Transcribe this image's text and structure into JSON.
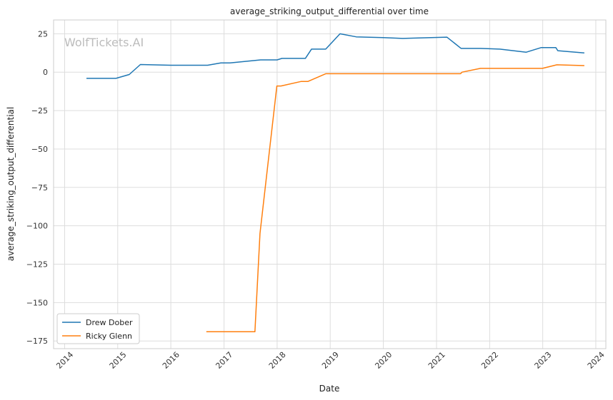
{
  "chart_data": {
    "type": "line",
    "title": "average_striking_output_differential over time",
    "xlabel": "Date",
    "ylabel": "average_striking_output_differential",
    "watermark": "WolfTickets.AI",
    "xlim": [
      "2013-10-17",
      "2024-03-10"
    ],
    "ylim": [
      -180,
      34
    ],
    "x_ticks": [
      "2014-01-01",
      "2015-01-01",
      "2016-01-01",
      "2017-01-01",
      "2018-01-01",
      "2019-01-01",
      "2020-01-01",
      "2021-01-01",
      "2022-01-01",
      "2023-01-01",
      "2024-01-01"
    ],
    "x_tick_labels": [
      "2014",
      "2015",
      "2016",
      "2017",
      "2018",
      "2019",
      "2020",
      "2021",
      "2022",
      "2023",
      "2024"
    ],
    "y_ticks": [
      25,
      0,
      -25,
      -50,
      -75,
      -100,
      -125,
      -150,
      -175
    ],
    "y_tick_labels": [
      "25",
      "0",
      "−25",
      "−50",
      "−75",
      "−100",
      "−125",
      "−150",
      "−175"
    ],
    "grid": true,
    "legend_position": "lower-left",
    "series": [
      {
        "name": "Drew Dober",
        "color": "#1f77b4",
        "points": [
          [
            "2014-05-31",
            -4
          ],
          [
            "2014-12-20",
            -4
          ],
          [
            "2015-03-21",
            -1.5
          ],
          [
            "2015-06-06",
            5
          ],
          [
            "2016-01-01",
            4.5
          ],
          [
            "2016-09-10",
            4.5
          ],
          [
            "2016-12-10",
            6
          ],
          [
            "2017-02-11",
            6
          ],
          [
            "2017-09-09",
            8
          ],
          [
            "2018-01-01",
            8
          ],
          [
            "2018-02-03",
            9
          ],
          [
            "2018-07-14",
            9
          ],
          [
            "2018-08-25",
            15
          ],
          [
            "2018-12-01",
            15
          ],
          [
            "2019-03-09",
            25
          ],
          [
            "2019-06-29",
            23
          ],
          [
            "2020-01-01",
            22.5
          ],
          [
            "2020-05-13",
            22
          ],
          [
            "2021-03-13",
            22.8
          ],
          [
            "2021-06-19",
            15.5
          ],
          [
            "2021-10-30",
            15.5
          ],
          [
            "2022-03-12",
            15
          ],
          [
            "2022-09-10",
            13
          ],
          [
            "2022-12-20",
            16
          ],
          [
            "2023-04-01",
            16
          ],
          [
            "2023-04-15",
            14
          ],
          [
            "2023-10-14",
            12.5
          ]
        ]
      },
      {
        "name": "Ricky Glenn",
        "color": "#ff7f0e",
        "points": [
          [
            "2016-09-01",
            -169
          ],
          [
            "2017-08-01",
            -169
          ],
          [
            "2017-09-05",
            -105
          ],
          [
            "2017-12-30",
            -9
          ],
          [
            "2018-01-27",
            -9
          ],
          [
            "2018-06-16",
            -6
          ],
          [
            "2018-08-01",
            -6
          ],
          [
            "2018-12-01",
            -1
          ],
          [
            "2021-06-15",
            -1
          ],
          [
            "2021-06-25",
            0
          ],
          [
            "2021-10-30",
            2.5
          ],
          [
            "2022-12-30",
            2.5
          ],
          [
            "2023-04-08",
            4.8
          ],
          [
            "2023-10-14",
            4.3
          ]
        ]
      }
    ]
  }
}
